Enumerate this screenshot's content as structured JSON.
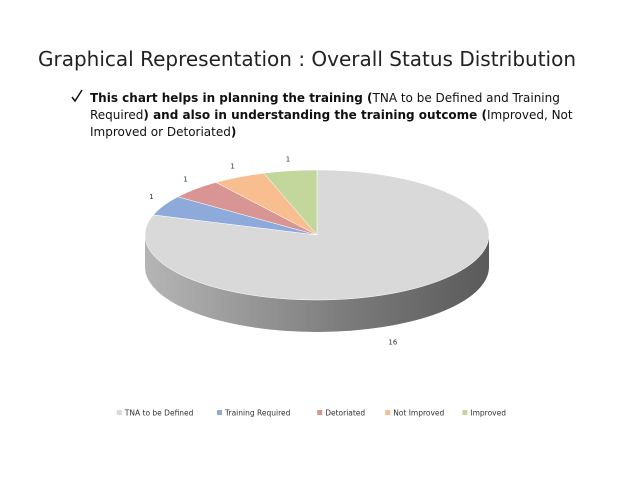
{
  "title": "Graphical Representation : Overall Status Distribution",
  "bullet": [
    {
      "text": "This chart helps in planning the training (",
      "bold": true
    },
    {
      "text": "TNA to be Defined and Training Required",
      "bold": false
    },
    {
      "text": ") and also in understanding the training outcome (",
      "bold": true
    },
    {
      "text": "Improved, Not Improved or Detoriated",
      "bold": false
    },
    {
      "text": ")",
      "bold": true
    }
  ],
  "chart_data": {
    "type": "pie",
    "categories": [
      "TNA to be Defined",
      "Training Required",
      "Detoriated",
      "Not Improved",
      "Improved"
    ],
    "values": [
      16,
      1,
      1,
      1,
      1
    ],
    "colors": [
      "#d9d9d9",
      "#8eaadb",
      "#d99594",
      "#f9be8f",
      "#c3d69b"
    ]
  }
}
